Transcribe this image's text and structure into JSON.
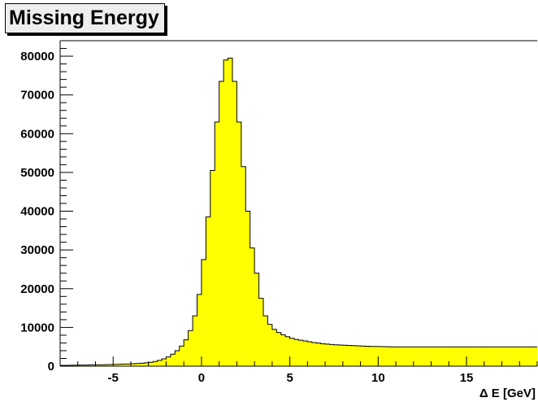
{
  "chart_data": {
    "type": "bar",
    "title": "Missing Energy",
    "xlabel": "Δ E [GeV]",
    "ylabel": "",
    "xlim": [
      -8,
      19
    ],
    "ylim": [
      0,
      84000
    ],
    "bin_width": 0.25,
    "x_ticks": [
      -5,
      0,
      5,
      10,
      15
    ],
    "y_ticks": [
      0,
      10000,
      20000,
      30000,
      40000,
      50000,
      60000,
      70000,
      80000
    ],
    "grid": false,
    "fill_color": "#ffff00",
    "line_color": "#000000",
    "bin_edges_start": -8,
    "values": [
      200,
      220,
      240,
      260,
      280,
      300,
      320,
      340,
      360,
      380,
      400,
      430,
      460,
      500,
      540,
      580,
      620,
      680,
      760,
      860,
      1000,
      1200,
      1500,
      1900,
      2400,
      3100,
      4000,
      5200,
      6800,
      9200,
      13000,
      18500,
      27500,
      38500,
      50500,
      63000,
      73500,
      79000,
      79500,
      73500,
      63000,
      51500,
      40000,
      30500,
      24000,
      17500,
      13000,
      10800,
      9500,
      8700,
      8100,
      7600,
      7200,
      6900,
      6700,
      6500,
      6300,
      6100,
      5950,
      5800,
      5700,
      5600,
      5500,
      5450,
      5400,
      5350,
      5300,
      5250,
      5200,
      5150,
      5100,
      5080,
      5060,
      5040,
      5020,
      5000,
      5000,
      5000,
      5000,
      5000,
      5000,
      5000,
      5000,
      5000,
      5000,
      5000,
      5000,
      5000,
      5000,
      5000,
      5000,
      5000,
      5000,
      5000,
      5000,
      5000,
      5000,
      5000,
      5000,
      5000,
      5000,
      5000,
      5000,
      5000,
      5000,
      5000,
      5000,
      5000
    ]
  }
}
